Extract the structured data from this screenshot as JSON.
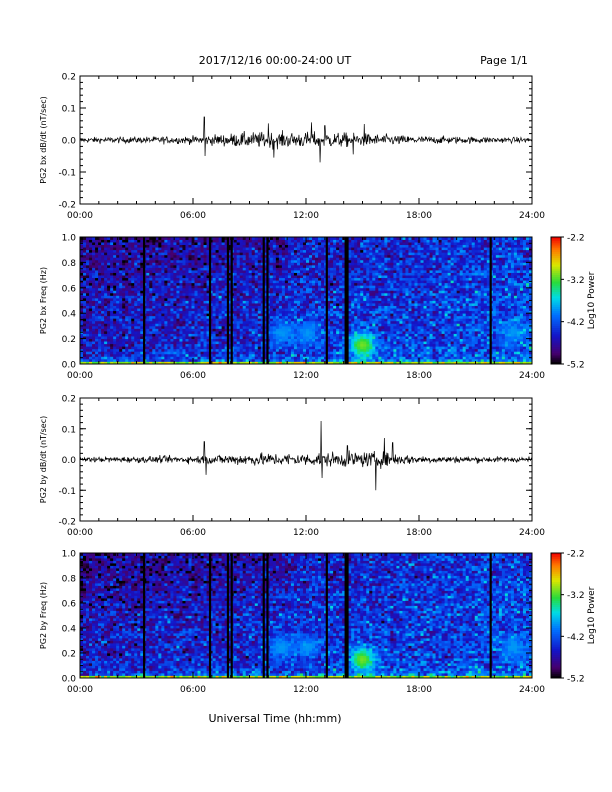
{
  "header": {
    "title": "2017/12/16  00:00-24:00 UT",
    "page": "Page 1/1"
  },
  "footer": {
    "xlabel": "Universal Time (hh:mm)"
  },
  "chart_data": [
    {
      "type": "line",
      "ylabel": "PG2 bx dB/dt (nT/sec)",
      "xlim": [
        0,
        24
      ],
      "x_tick_labels": [
        "00:00",
        "06:00",
        "12:00",
        "18:00",
        "24:00"
      ],
      "ylim": [
        -0.2,
        0.2
      ],
      "y_tick_labels": [
        "0.2",
        "0.1",
        "0.0",
        "-0.1",
        "-0.2"
      ],
      "baseline_noise": 0.003,
      "activity": [
        [
          0,
          0.004
        ],
        [
          6,
          0.006
        ],
        [
          9,
          0.012
        ],
        [
          13,
          0.012
        ],
        [
          15,
          0.01
        ],
        [
          18,
          0.006
        ],
        [
          24,
          0.004
        ]
      ],
      "spikes": [
        [
          6.6,
          0.072
        ],
        [
          6.65,
          -0.05
        ],
        [
          10.0,
          0.052
        ],
        [
          10.3,
          -0.055
        ],
        [
          12.3,
          0.055
        ],
        [
          12.75,
          -0.07
        ],
        [
          13.0,
          0.045
        ],
        [
          14.5,
          -0.045
        ],
        [
          15.1,
          0.05
        ]
      ]
    },
    {
      "type": "heatmap",
      "ylabel": "PG2 bx Freq (Hz)",
      "xlim": [
        0,
        24
      ],
      "x_tick_labels": [
        "00:00",
        "06:00",
        "12:00",
        "18:00",
        "24:00"
      ],
      "ylim": [
        0.0,
        1.0
      ],
      "y_tick_labels": [
        "1.0",
        "0.8",
        "0.6",
        "0.4",
        "0.2",
        "0.0"
      ],
      "colorbar": {
        "label": "Log10 Power",
        "range": [
          -5.2,
          -2.2
        ],
        "tick_labels": [
          "-2.2",
          "-3.2",
          "-4.2",
          "-5.2"
        ]
      },
      "data_gaps_hours": [
        3.4,
        6.9,
        7.85,
        8.05,
        9.75,
        9.95,
        13.1,
        14.1,
        14.2,
        21.8
      ],
      "enhancements": [
        [
          15.0,
          0.15,
          -3.1
        ],
        [
          10.7,
          0.25,
          -3.9
        ],
        [
          12.1,
          0.25,
          -3.9
        ],
        [
          23.0,
          0.25,
          -3.9
        ]
      ]
    },
    {
      "type": "line",
      "ylabel": "PG2 by dB/dt (nT/sec)",
      "xlim": [
        0,
        24
      ],
      "x_tick_labels": [
        "00:00",
        "06:00",
        "12:00",
        "18:00",
        "24:00"
      ],
      "ylim": [
        -0.2,
        0.2
      ],
      "y_tick_labels": [
        "0.2",
        "0.1",
        "0.0",
        "-0.1",
        "-0.2"
      ],
      "baseline_noise": 0.003,
      "activity": [
        [
          0,
          0.004
        ],
        [
          6,
          0.006
        ],
        [
          9,
          0.01
        ],
        [
          12,
          0.01
        ],
        [
          14,
          0.012
        ],
        [
          16,
          0.012
        ],
        [
          18,
          0.006
        ],
        [
          24,
          0.004
        ]
      ],
      "spikes": [
        [
          6.6,
          0.058
        ],
        [
          6.7,
          -0.05
        ],
        [
          12.8,
          0.125
        ],
        [
          12.85,
          -0.06
        ],
        [
          14.2,
          0.045
        ],
        [
          15.7,
          -0.1
        ],
        [
          16.15,
          0.07
        ],
        [
          16.6,
          0.055
        ]
      ]
    },
    {
      "type": "heatmap",
      "ylabel": "PG2 by Freq (Hz)",
      "xlim": [
        0,
        24
      ],
      "x_tick_labels": [
        "00:00",
        "06:00",
        "12:00",
        "18:00",
        "24:00"
      ],
      "ylim": [
        0.0,
        1.0
      ],
      "y_tick_labels": [
        "1.0",
        "0.8",
        "0.6",
        "0.4",
        "0.2",
        "0.0"
      ],
      "colorbar": {
        "label": "Log10 Power",
        "range": [
          -5.2,
          -2.2
        ],
        "tick_labels": [
          "-2.2",
          "-3.2",
          "-4.2",
          "-5.2"
        ]
      },
      "data_gaps_hours": [
        3.4,
        6.9,
        7.85,
        8.05,
        9.75,
        9.95,
        13.1,
        14.1,
        14.2,
        21.8
      ],
      "enhancements": [
        [
          15.0,
          0.15,
          -3.1
        ],
        [
          10.7,
          0.25,
          -3.9
        ],
        [
          12.1,
          0.25,
          -3.9
        ],
        [
          23.0,
          0.25,
          -3.9
        ]
      ]
    }
  ],
  "colors": {
    "trace": "#000000",
    "axes": "#000000",
    "background": "#ffffff"
  }
}
